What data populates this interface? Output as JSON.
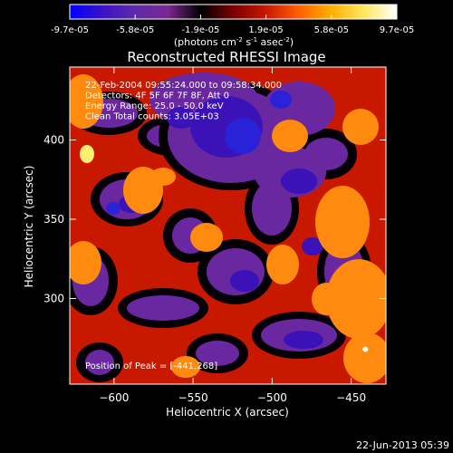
{
  "colorbar": {
    "colors": [
      "#0000ff",
      "#3a12c8",
      "#5f2aa8",
      "#7a2890",
      "#000000",
      "#7a0000",
      "#c81800",
      "#ff6000",
      "#ffb000",
      "#ffe860",
      "#ffffff"
    ],
    "tick_labels": [
      "-9.7e-05",
      "-5.8e-05",
      "-1.9e-05",
      "1.9e-05",
      "5.8e-05",
      "9.7e-05"
    ],
    "units_label": "(photons cm",
    "units_exp1": "-2",
    "units_mid": " s",
    "units_exp2": "-1",
    "units_end": " asec",
    "units_exp3": "-2",
    "units_close": ")"
  },
  "chart_data": {
    "type": "heatmap",
    "title": "Reconstructed RHESSI Image",
    "xlabel": "Heliocentric X (arcsec)",
    "ylabel": "Heliocentric Y (arcsec)",
    "xlim": [
      -628,
      -428
    ],
    "ylim": [
      246,
      446
    ],
    "x_ticks": [
      -600,
      -550,
      -500,
      -450
    ],
    "y_ticks": [
      300,
      350,
      400
    ],
    "x_tick_labels": [
      "−600",
      "−550",
      "−500",
      "−450"
    ],
    "y_tick_labels": [
      "300",
      "350",
      "400"
    ],
    "color_range": [
      -9.7e-05,
      9.7e-05
    ],
    "annotations": [
      "22-Feb-2004 09:55:24.000 to 09:58:34.000",
      "Detectors: 4F 5F 6F 7F 8F, Att 0",
      "Energy Range: 25.0 - 50.0 keV",
      "Clean     Total counts: 3.05E+03"
    ],
    "peak_label": "Position of Peak = [-441,268]",
    "peak": [
      -441,
      268
    ]
  },
  "footer": {
    "date": "22-Jun-2013 05:39"
  }
}
